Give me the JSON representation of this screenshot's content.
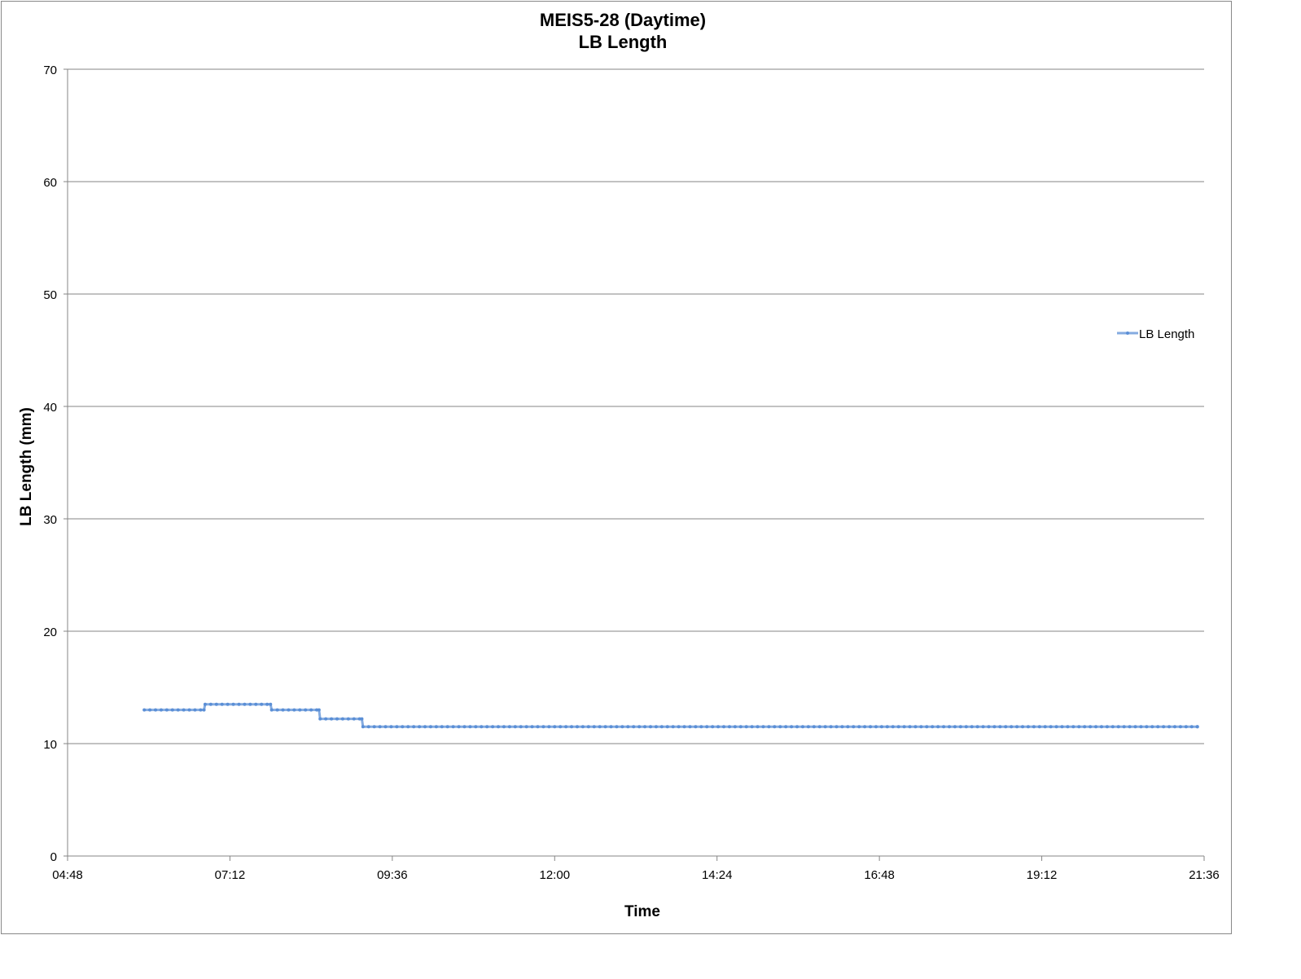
{
  "chart_data": {
    "type": "line",
    "title": "MEIS5-28 (Daytime)",
    "subtitle": "LB Length",
    "xlabel": "Time",
    "ylabel": "LB Length (mm)",
    "xlim": [
      "04:48",
      "21:36"
    ],
    "ylim": [
      0,
      70
    ],
    "x_ticks": [
      "04:48",
      "07:12",
      "09:36",
      "12:00",
      "14:24",
      "16:48",
      "19:12",
      "21:36"
    ],
    "y_ticks": [
      0,
      10,
      20,
      30,
      40,
      50,
      60,
      70
    ],
    "grid": true,
    "legend": "right",
    "series": [
      {
        "name": "LB Length",
        "color": "#5b8fd6",
        "marker": "dot",
        "segments": [
          {
            "start": "05:56",
            "end": "06:49",
            "value": 13.0
          },
          {
            "start": "06:50",
            "end": "07:48",
            "value": 13.5
          },
          {
            "start": "07:49",
            "end": "08:31",
            "value": 13.0
          },
          {
            "start": "08:32",
            "end": "09:09",
            "value": 12.2
          },
          {
            "start": "09:10",
            "end": "21:30",
            "value": 11.5
          }
        ]
      }
    ]
  }
}
